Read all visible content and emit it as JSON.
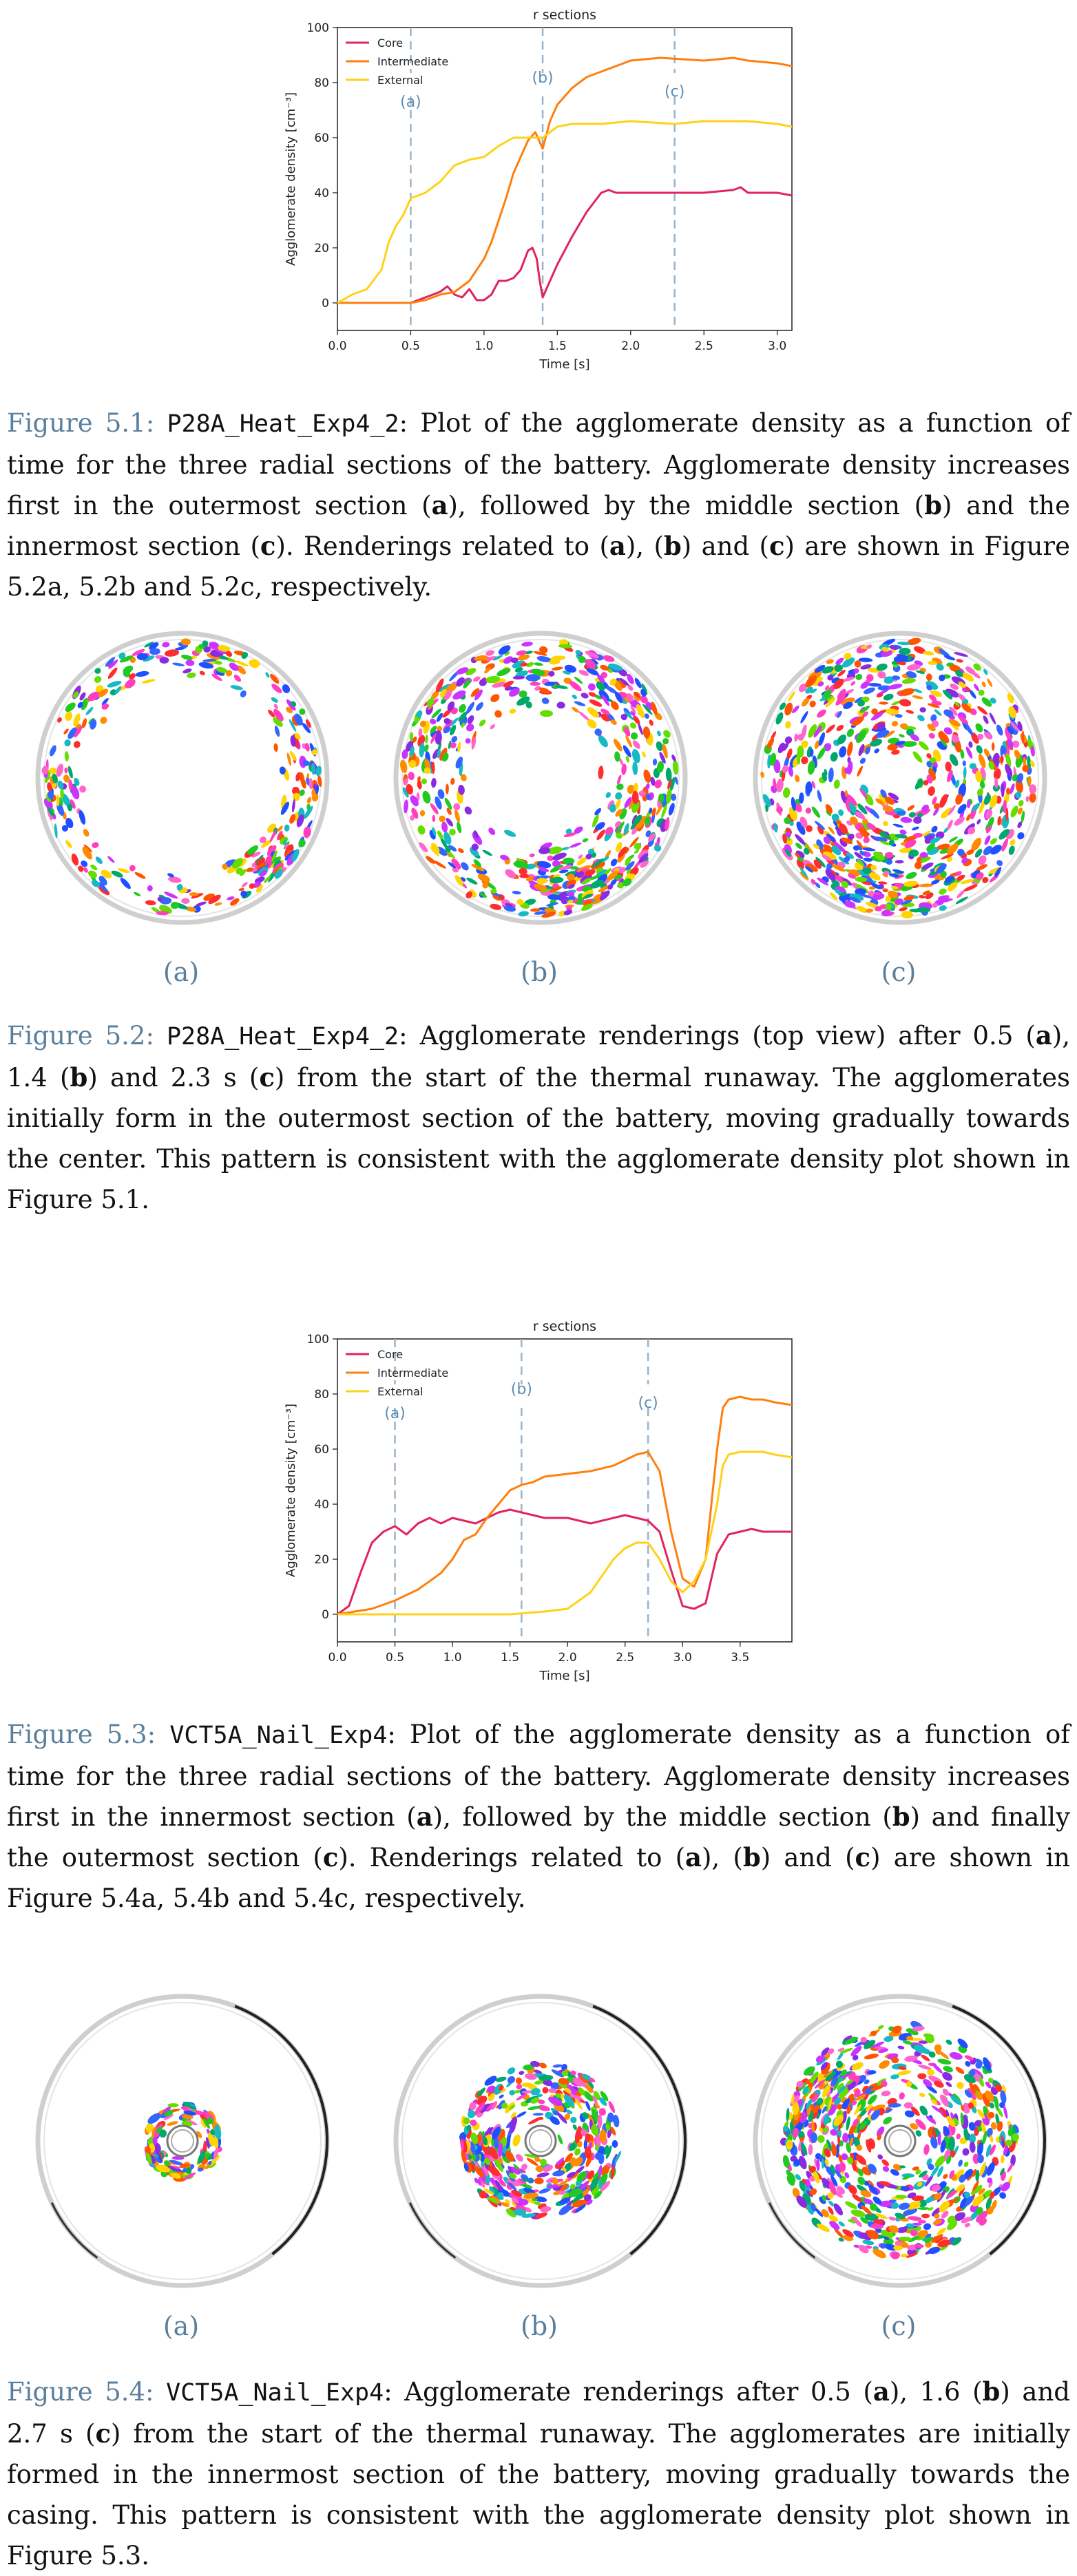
{
  "chart_data": [
    {
      "type": "line",
      "title": "r sections",
      "xlabel": "Time [s]",
      "ylabel": "Agglomerate density [cm⁻³]",
      "xlim": [
        0,
        3.1
      ],
      "ylim": [
        -10,
        100
      ],
      "xticks": [
        "0.0",
        "0.5",
        "1.0",
        "1.5",
        "2.0",
        "2.5",
        "3.0"
      ],
      "yticks": [
        "0",
        "20",
        "40",
        "60",
        "80",
        "100"
      ],
      "legend": "top-left",
      "markers": [
        {
          "label": "(a)",
          "x": 0.5
        },
        {
          "label": "(b)",
          "x": 1.4
        },
        {
          "label": "(c)",
          "x": 2.3
        }
      ],
      "series": [
        {
          "name": "Core",
          "color": "#e0245e",
          "x": [
            0,
            0.2,
            0.4,
            0.5,
            0.6,
            0.7,
            0.75,
            0.8,
            0.85,
            0.9,
            0.95,
            1.0,
            1.05,
            1.1,
            1.15,
            1.2,
            1.25,
            1.3,
            1.33,
            1.36,
            1.38,
            1.4,
            1.45,
            1.5,
            1.6,
            1.7,
            1.8,
            1.85,
            1.9,
            2.0,
            2.2,
            2.5,
            2.7,
            2.75,
            2.8,
            3.0,
            3.1
          ],
          "y": [
            0,
            0,
            0,
            0,
            2,
            4,
            6,
            3,
            2,
            5,
            1,
            1,
            3,
            8,
            8,
            9,
            12,
            19,
            20,
            16,
            8,
            2,
            8,
            14,
            24,
            33,
            40,
            41,
            40,
            40,
            40,
            40,
            41,
            42,
            40,
            40,
            39
          ]
        },
        {
          "name": "Intermediate",
          "color": "#ff7f0e",
          "x": [
            0,
            0.2,
            0.4,
            0.5,
            0.6,
            0.7,
            0.8,
            0.9,
            1.0,
            1.05,
            1.1,
            1.15,
            1.2,
            1.25,
            1.3,
            1.35,
            1.4,
            1.45,
            1.5,
            1.6,
            1.7,
            1.8,
            1.9,
            2.0,
            2.2,
            2.5,
            2.7,
            2.8,
            3.0,
            3.1
          ],
          "y": [
            0,
            0,
            0,
            0,
            1,
            3,
            4,
            8,
            16,
            22,
            30,
            38,
            47,
            53,
            59,
            62,
            56,
            66,
            72,
            78,
            82,
            84,
            86,
            88,
            89,
            88,
            89,
            88,
            87,
            86
          ]
        },
        {
          "name": "External",
          "color": "#ffd21a",
          "x": [
            0,
            0.1,
            0.2,
            0.3,
            0.35,
            0.4,
            0.45,
            0.5,
            0.6,
            0.7,
            0.8,
            0.9,
            1.0,
            1.1,
            1.2,
            1.3,
            1.4,
            1.45,
            1.5,
            1.6,
            1.8,
            2.0,
            2.3,
            2.5,
            2.8,
            3.0,
            3.1
          ],
          "y": [
            0,
            3,
            5,
            12,
            22,
            28,
            32,
            38,
            40,
            44,
            50,
            52,
            53,
            57,
            60,
            60,
            60,
            62,
            64,
            65,
            65,
            66,
            65,
            66,
            66,
            65,
            64
          ]
        }
      ]
    },
    {
      "type": "line",
      "title": "r sections",
      "xlabel": "Time [s]",
      "ylabel": "Agglomerate density [cm⁻³]",
      "xlim": [
        0,
        3.95
      ],
      "ylim": [
        -10,
        100
      ],
      "xticks": [
        "0.0",
        "0.5",
        "1.0",
        "1.5",
        "2.0",
        "2.5",
        "3.0",
        "3.5"
      ],
      "yticks": [
        "0",
        "20",
        "40",
        "60",
        "80",
        "100"
      ],
      "legend": "top-left",
      "markers": [
        {
          "label": "(a)",
          "x": 0.5
        },
        {
          "label": "(b)",
          "x": 1.6
        },
        {
          "label": "(c)",
          "x": 2.7
        }
      ],
      "series": [
        {
          "name": "Core",
          "color": "#e0245e",
          "x": [
            0,
            0.1,
            0.2,
            0.3,
            0.4,
            0.5,
            0.6,
            0.7,
            0.8,
            0.9,
            1.0,
            1.1,
            1.2,
            1.3,
            1.4,
            1.5,
            1.6,
            1.7,
            1.8,
            2.0,
            2.2,
            2.4,
            2.5,
            2.6,
            2.7,
            2.8,
            2.9,
            3.0,
            3.1,
            3.2,
            3.3,
            3.4,
            3.5,
            3.6,
            3.7,
            3.8,
            3.95
          ],
          "y": [
            0,
            3,
            15,
            26,
            30,
            32,
            29,
            33,
            35,
            33,
            35,
            34,
            33,
            35,
            37,
            38,
            37,
            36,
            35,
            35,
            33,
            35,
            36,
            35,
            34,
            30,
            16,
            3,
            2,
            4,
            22,
            29,
            30,
            31,
            30,
            30,
            30
          ]
        },
        {
          "name": "Intermediate",
          "color": "#ff7f0e",
          "x": [
            0,
            0.3,
            0.5,
            0.7,
            0.9,
            1.0,
            1.1,
            1.2,
            1.3,
            1.4,
            1.5,
            1.6,
            1.7,
            1.8,
            2.0,
            2.2,
            2.4,
            2.5,
            2.6,
            2.7,
            2.8,
            2.9,
            3.0,
            3.1,
            3.2,
            3.3,
            3.35,
            3.4,
            3.5,
            3.6,
            3.7,
            3.8,
            3.95
          ],
          "y": [
            0,
            2,
            5,
            9,
            15,
            20,
            27,
            29,
            35,
            40,
            45,
            47,
            48,
            50,
            51,
            52,
            54,
            56,
            58,
            59,
            52,
            30,
            13,
            10,
            20,
            60,
            75,
            78,
            79,
            78,
            78,
            77,
            76
          ]
        },
        {
          "name": "External",
          "color": "#ffd21a",
          "x": [
            0,
            0.5,
            1.0,
            1.5,
            1.8,
            2.0,
            2.1,
            2.2,
            2.3,
            2.4,
            2.5,
            2.6,
            2.7,
            2.8,
            2.9,
            3.0,
            3.1,
            3.2,
            3.3,
            3.35,
            3.4,
            3.5,
            3.6,
            3.7,
            3.8,
            3.95
          ],
          "y": [
            0,
            0,
            0,
            0,
            1,
            2,
            5,
            8,
            14,
            20,
            24,
            26,
            26,
            20,
            12,
            8,
            12,
            20,
            40,
            54,
            58,
            59,
            59,
            59,
            58,
            57
          ]
        }
      ]
    }
  ],
  "fig1_caption": {
    "label": "Figure 5.1:",
    "code": "P28A_Heat_Exp4_2",
    "t1": ": Plot of the agglomerate density as a function of time for the three radial sections of the battery. Agglomerate density increases first in the outermost section (",
    "a": "a",
    "t2": "), followed by the middle section (",
    "b": "b",
    "t3": ") and the innermost section (",
    "c": "c",
    "t4": "). Renderings related to (",
    "a2": "a",
    "t5": "), (",
    "b2": "b",
    "t6": ") and (",
    "c2": "c",
    "t7": ") are shown in Figure 5.2a, 5.2b and 5.2c, respectively."
  },
  "fig2_sublabels": [
    "(a)",
    "(b)",
    "(c)"
  ],
  "fig2_caption": {
    "label": "Figure 5.2:",
    "code": "P28A_Heat_Exp4_2",
    "t1": ": Agglomerate renderings (top view) after 0.5 (",
    "a": "a",
    "t2": "), 1.4 (",
    "b": "b",
    "t3": ") and 2.3 s (",
    "c": "c",
    "t4": ") from the start of the thermal runaway. The agglomerates initially form in the outermost section of the battery, moving gradually towards the center. This pattern is consistent with the agglomerate density plot shown in Figure 5.1."
  },
  "fig3_caption": {
    "label": "Figure 5.3:",
    "code": "VCT5A_Nail_Exp4",
    "t1": ": Plot of the agglomerate density as a function of time for the three radial sections of the battery. Agglomerate density increases first in the innermost section (",
    "a": "a",
    "t2": "), followed by the middle section (",
    "b": "b",
    "t3": ") and finally the outermost section (",
    "c": "c",
    "t4": "). Renderings related to (",
    "a2": "a",
    "t5": "), (",
    "b2": "b",
    "t6": ") and (",
    "c2": "c",
    "t7": ") are shown in Figure 5.4a, 5.4b and 5.4c, respectively."
  },
  "fig4_sublabels": [
    "(a)",
    "(b)",
    "(c)"
  ],
  "fig4_caption": {
    "label": "Figure 5.4:",
    "code": "VCT5A_Nail_Exp4",
    "t1": ": Agglomerate renderings after 0.5 (",
    "a": "a",
    "t2": "), 1.6 (",
    "b": "b",
    "t3": ") and 2.7 s (",
    "c": "c",
    "t4": ") from the start of the thermal runaway. The agglomerates are initially formed in the innermost section of the battery, moving gradually towards the casing. This pattern is consistent with the agglomerate density plot shown in Figure 5.3."
  },
  "colors": {
    "caption_label": "#5a7f9c",
    "marker_line": "#9bb3c8",
    "marker_text": "#5a8db5"
  }
}
